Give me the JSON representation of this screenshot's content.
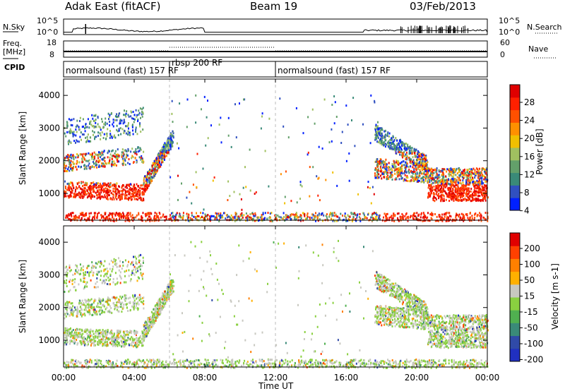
{
  "header": {
    "station": "Adak East (fitACF)",
    "beam": "Beam 19",
    "date": "03/Feb/2013"
  },
  "top_panels": {
    "nsky_label": "N.Sky",
    "nsearch_label": "N.Search",
    "nsky_ticks": [
      "10^5",
      "10^0"
    ],
    "nsearch_ticks": [
      "10^5",
      "10^0"
    ],
    "freq_label": "Freq.",
    "freq_unit": "[MHz]",
    "freq_ticks": [
      "18",
      "8"
    ],
    "nave_label": "Nave",
    "nave_ticks": [
      "60",
      "0"
    ],
    "cpid_label": "CPID",
    "cpid_segments": [
      {
        "label": "normalsound (fast) 157 RF",
        "start_hour": 0,
        "end_hour": 6
      },
      {
        "label": "rbsp 200 RF",
        "start_hour": 6,
        "end_hour": 12
      },
      {
        "label": "normalsound (fast) 157 RF",
        "start_hour": 12,
        "end_hour": 24
      }
    ]
  },
  "colorbars": {
    "power": {
      "label": "Power [dB]",
      "ticks": [
        "28",
        "24",
        "20",
        "16",
        "12",
        "8",
        "4"
      ],
      "colors": [
        "#0020ff",
        "#3050c0",
        "#3a8a78",
        "#63a06a",
        "#a0c060",
        "#f0c000",
        "#ff9000",
        "#ff5000",
        "#ff2000",
        "#e00000"
      ]
    },
    "velocity": {
      "label": "Velocity [m s-1]",
      "ticks": [
        "200",
        "100",
        "50",
        "15",
        "-15",
        "-50",
        "-100",
        "-200"
      ],
      "colors": [
        "#2030c0",
        "#304aa8",
        "#3a8a78",
        "#50b050",
        "#8ad040",
        "#c8c8c0",
        "#ffb000",
        "#ff8000",
        "#ff4000",
        "#e00000"
      ]
    }
  },
  "chart_data": [
    {
      "type": "heatmap",
      "title": "",
      "ylabel": "Slant Range [km]",
      "xlabel": "Time UT",
      "x_ticks": [
        "00:00",
        "04:00",
        "08:00",
        "12:00",
        "16:00",
        "20:00",
        "00:00"
      ],
      "xlim_hours": [
        0,
        24
      ],
      "y_ticks": [
        "1000",
        "2000",
        "3000",
        "4000"
      ],
      "ylim_km": [
        180,
        4500
      ],
      "colorbar": "Power [dB]",
      "scatter_regions": [
        {
          "name": "morning-ionospheric",
          "t": [
            0,
            6.2
          ],
          "r": [
            700,
            3500
          ],
          "power_db": [
            4,
            30
          ]
        },
        {
          "name": "evening-ionospheric",
          "t": [
            17.6,
            24
          ],
          "r": [
            650,
            3500
          ],
          "power_db": [
            4,
            30
          ]
        },
        {
          "name": "ground-clutter",
          "t": [
            0,
            24
          ],
          "r": [
            180,
            400
          ],
          "power_db": [
            4,
            30
          ]
        }
      ]
    },
    {
      "type": "heatmap",
      "title": "",
      "ylabel": "Slant Range [km]",
      "xlabel": "Time UT",
      "x_ticks": [
        "00:00",
        "04:00",
        "08:00",
        "12:00",
        "16:00",
        "20:00",
        "00:00"
      ],
      "xlim_hours": [
        0,
        24
      ],
      "y_ticks": [
        "1000",
        "2000",
        "3000",
        "4000"
      ],
      "ylim_km": [
        180,
        4500
      ],
      "colorbar": "Velocity [m s-1]",
      "scatter_regions": [
        {
          "name": "morning-ionospheric",
          "t": [
            0,
            6.2
          ],
          "r": [
            700,
            3500
          ],
          "velocity_ms": [
            -100,
            100
          ]
        },
        {
          "name": "evening-ionospheric",
          "t": [
            17.6,
            24
          ],
          "r": [
            650,
            3500
          ],
          "velocity_ms": [
            -100,
            50
          ]
        },
        {
          "name": "ground-clutter",
          "t": [
            0,
            24
          ],
          "r": [
            180,
            400
          ],
          "velocity_ms": [
            -15,
            15
          ]
        }
      ]
    }
  ]
}
